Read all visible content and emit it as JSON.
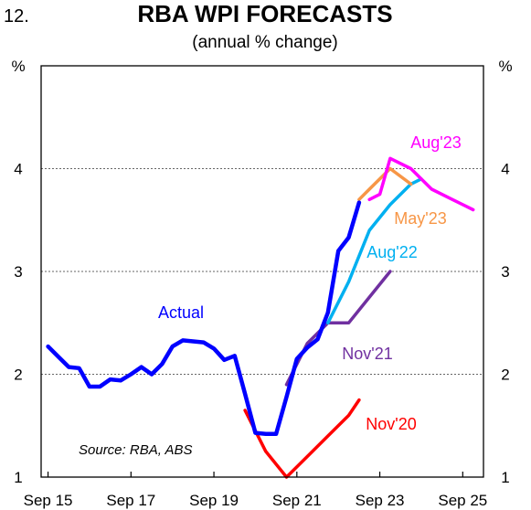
{
  "figure_number": "12.",
  "chart_data": {
    "type": "line",
    "title": "RBA WPI FORECASTS",
    "subtitle": "(annual % change)",
    "ylabel_left": "%",
    "ylabel_right": "%",
    "ylim": [
      1,
      5
    ],
    "yticks": [
      "1",
      "2",
      "3",
      "4"
    ],
    "yticks_right": [
      "1",
      "2",
      "3",
      "4"
    ],
    "xlim": [
      "2015-07",
      "2026-03"
    ],
    "xticks": [
      {
        "date": "2015-09",
        "label": "Sep 15"
      },
      {
        "date": "2017-09",
        "label": "Sep 17"
      },
      {
        "date": "2019-09",
        "label": "Sep 19"
      },
      {
        "date": "2021-09",
        "label": "Sep 21"
      },
      {
        "date": "2023-09",
        "label": "Sep 23"
      },
      {
        "date": "2025-09",
        "label": "Sep 25"
      }
    ],
    "grid": "horizontal dotted",
    "source": "Source: RBA, ABS",
    "series": [
      {
        "name": "Nov'20",
        "color": "#ff0000",
        "points": [
          [
            "2020-06",
            1.65
          ],
          [
            "2020-12",
            1.25
          ],
          [
            "2021-06",
            1.0
          ],
          [
            "2021-12",
            1.2
          ],
          [
            "2022-06",
            1.4
          ],
          [
            "2022-12",
            1.6
          ],
          [
            "2023-03",
            1.75
          ]
        ]
      },
      {
        "name": "Nov'21",
        "color": "#7030a0",
        "points": [
          [
            "2021-06",
            1.9
          ],
          [
            "2021-12",
            2.3
          ],
          [
            "2022-06",
            2.5
          ],
          [
            "2022-12",
            2.5
          ],
          [
            "2023-06",
            2.75
          ],
          [
            "2023-12",
            3.0
          ]
        ]
      },
      {
        "name": "Aug'22",
        "color": "#00b0f0",
        "points": [
          [
            "2022-06",
            2.5
          ],
          [
            "2022-12",
            2.9
          ],
          [
            "2023-06",
            3.4
          ],
          [
            "2023-12",
            3.65
          ],
          [
            "2024-06",
            3.85
          ],
          [
            "2024-09",
            3.9
          ]
        ]
      },
      {
        "name": "May'23",
        "color": "#f79646",
        "points": [
          [
            "2023-03",
            3.7
          ],
          [
            "2023-06",
            3.8
          ],
          [
            "2023-12",
            4.0
          ],
          [
            "2024-06",
            3.85
          ]
        ]
      },
      {
        "name": "Aug'23",
        "color": "#ff00ff",
        "points": [
          [
            "2023-06",
            3.7
          ],
          [
            "2023-09",
            3.75
          ],
          [
            "2023-12",
            4.1
          ],
          [
            "2024-06",
            4.0
          ],
          [
            "2024-12",
            3.8
          ],
          [
            "2025-06",
            3.7
          ],
          [
            "2025-12",
            3.6
          ]
        ]
      },
      {
        "name": "Actual",
        "color": "#0000ff",
        "points": [
          [
            "2015-09",
            2.27
          ],
          [
            "2015-12",
            2.17
          ],
          [
            "2016-03",
            2.07
          ],
          [
            "2016-06",
            2.06
          ],
          [
            "2016-09",
            1.88
          ],
          [
            "2016-12",
            1.88
          ],
          [
            "2017-03",
            1.95
          ],
          [
            "2017-06",
            1.94
          ],
          [
            "2017-09",
            2.0
          ],
          [
            "2017-12",
            2.07
          ],
          [
            "2018-03",
            2.0
          ],
          [
            "2018-06",
            2.1
          ],
          [
            "2018-09",
            2.27
          ],
          [
            "2018-12",
            2.33
          ],
          [
            "2019-03",
            2.32
          ],
          [
            "2019-06",
            2.31
          ],
          [
            "2019-09",
            2.25
          ],
          [
            "2019-12",
            2.14
          ],
          [
            "2020-03",
            2.18
          ],
          [
            "2020-06",
            1.81
          ],
          [
            "2020-09",
            1.43
          ],
          [
            "2020-12",
            1.42
          ],
          [
            "2021-03",
            1.42
          ],
          [
            "2021-06",
            1.78
          ],
          [
            "2021-09",
            2.15
          ],
          [
            "2021-12",
            2.26
          ],
          [
            "2022-03",
            2.34
          ],
          [
            "2022-06",
            2.6
          ],
          [
            "2022-09",
            3.2
          ],
          [
            "2022-12",
            3.33
          ],
          [
            "2023-03",
            3.67
          ]
        ]
      }
    ],
    "series_labels": [
      "Actual",
      "Nov'20",
      "Nov'21",
      "Aug'22",
      "May'23",
      "Aug'23"
    ]
  }
}
